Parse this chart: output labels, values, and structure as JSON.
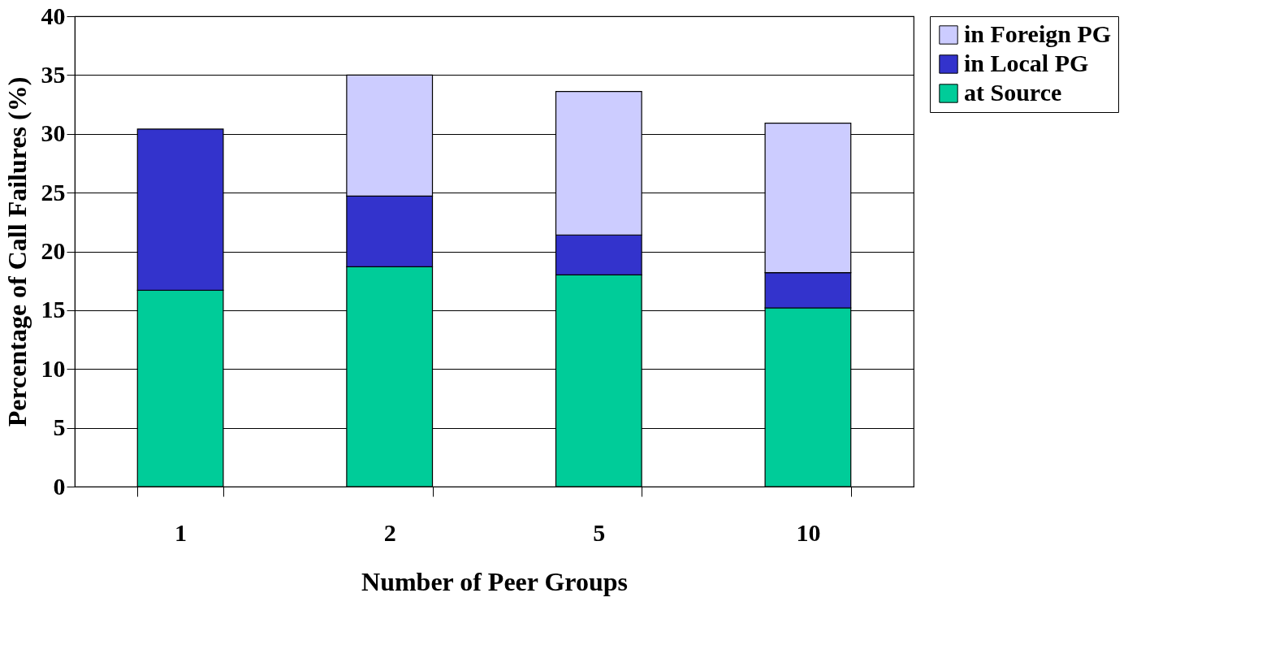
{
  "chart_data": {
    "type": "bar",
    "stacked": true,
    "xlabel": "Number of Peer Groups",
    "ylabel": "Percentage of Call Failures (%)",
    "categories": [
      "1",
      "2",
      "5",
      "10"
    ],
    "series": [
      {
        "name": "at Source",
        "color": "#00cc99",
        "values": [
          16.7,
          18.7,
          18.0,
          15.2
        ]
      },
      {
        "name": "in Local PG",
        "color": "#3333cc",
        "values": [
          13.7,
          6.0,
          3.4,
          3.0
        ]
      },
      {
        "name": "in Foreign PG",
        "color": "#ccccff",
        "values": [
          null,
          10.3,
          12.2,
          12.7
        ]
      }
    ],
    "ylim": [
      0,
      40
    ],
    "yticks": [
      0,
      5,
      10,
      15,
      20,
      25,
      30,
      35,
      40
    ],
    "grid": "y",
    "legend": "right"
  }
}
